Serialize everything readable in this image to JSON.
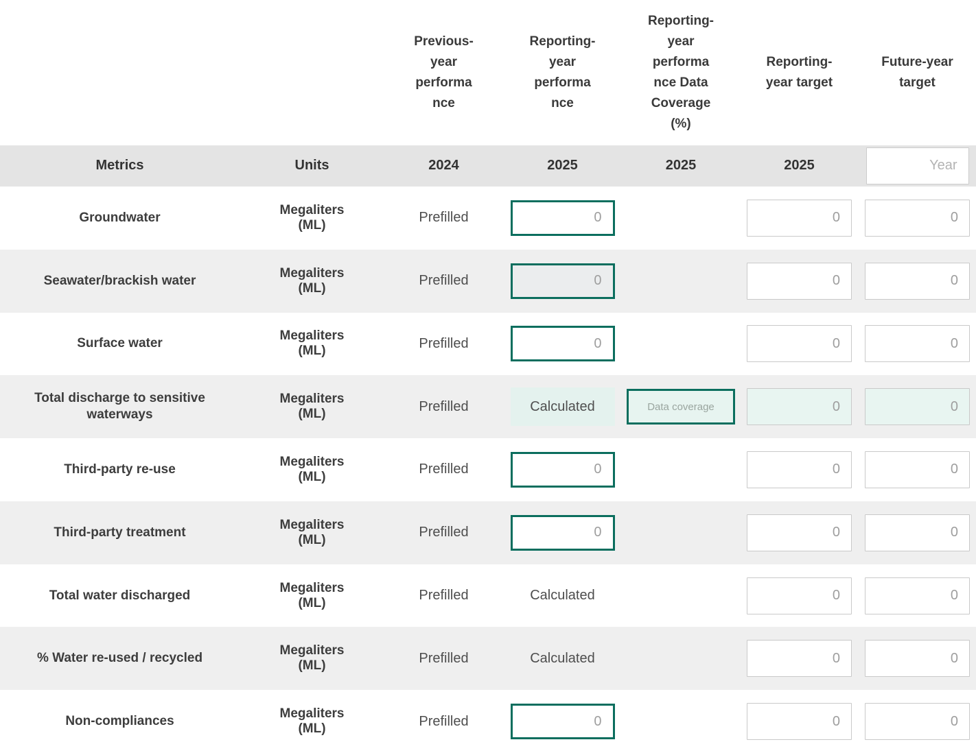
{
  "columns": {
    "previous_header": "Previous-\nyear\nperforma\nnce",
    "performance_header": "Reporting-\nyear\nperforma\nnce",
    "coverage_header": "Reporting-\nyear\nperforma\nnce Data\nCoverage\n(%)",
    "target_header": "Reporting-\nyear target",
    "future_header": "Future-year\ntarget"
  },
  "subheader": {
    "metrics_label": "Metrics",
    "units_label": "Units",
    "previous_year": "2024",
    "performance_year": "2025",
    "coverage_year": "2025",
    "target_year": "2025",
    "future_year_placeholder": "Year"
  },
  "colors": {
    "accent_teal": "#0b6e5e",
    "mint_background": "#e7f4f0",
    "stripe_gray": "#efefef",
    "band_gray": "#e4e4e4"
  },
  "rows": [
    {
      "metric": "Groundwater",
      "units": "Megaliters\n(ML)",
      "previous": "Prefilled",
      "performance_placeholder": "0",
      "target_placeholder": "0",
      "future_placeholder": "0"
    },
    {
      "metric": "Seawater/brackish water",
      "units": "Megaliters\n(ML)",
      "previous": "Prefilled",
      "performance_placeholder": "0",
      "target_placeholder": "0",
      "future_placeholder": "0"
    },
    {
      "metric": "Surface water",
      "units": "Megaliters\n(ML)",
      "previous": "Prefilled",
      "performance_placeholder": "0",
      "target_placeholder": "0",
      "future_placeholder": "0"
    },
    {
      "metric": "Total discharge to sensitive\nwaterways",
      "units": "Megaliters\n(ML)",
      "previous": "Prefilled",
      "performance_text": "Calculated",
      "coverage_placeholder": "Data coverage",
      "target_placeholder": "0",
      "future_placeholder": "0"
    },
    {
      "metric": "Third-party re-use",
      "units": "Megaliters\n(ML)",
      "previous": "Prefilled",
      "performance_placeholder": "0",
      "target_placeholder": "0",
      "future_placeholder": "0"
    },
    {
      "metric": "Third-party treatment",
      "units": "Megaliters\n(ML)",
      "previous": "Prefilled",
      "performance_placeholder": "0",
      "target_placeholder": "0",
      "future_placeholder": "0"
    },
    {
      "metric": "Total water discharged",
      "units": "Megaliters\n(ML)",
      "previous": "Prefilled",
      "performance_text": "Calculated",
      "target_placeholder": "0",
      "future_placeholder": "0"
    },
    {
      "metric": "% Water re-used / recycled",
      "units": "Megaliters\n(ML)",
      "previous": "Prefilled",
      "performance_text": "Calculated",
      "target_placeholder": "0",
      "future_placeholder": "0"
    },
    {
      "metric": "Non-compliances",
      "units": "Megaliters\n(ML)",
      "previous": "Prefilled",
      "performance_placeholder": "0",
      "target_placeholder": "0",
      "future_placeholder": "0"
    }
  ]
}
